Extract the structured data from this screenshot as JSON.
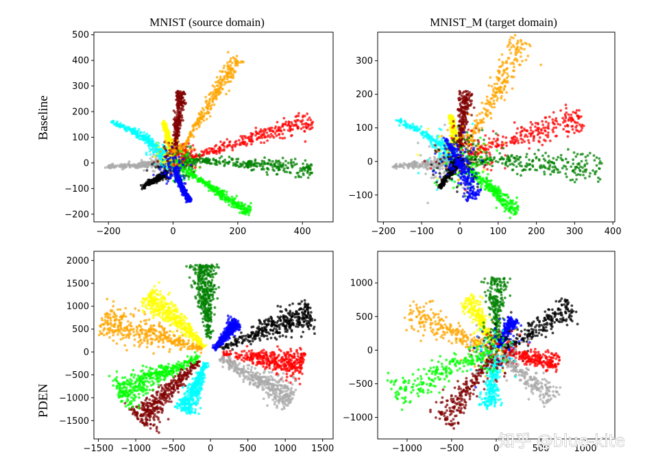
{
  "figure": {
    "column_titles": [
      "MNIST (source domain)",
      "MNIST_M (target domain)"
    ],
    "row_labels": [
      "Baseline",
      "PDEN"
    ],
    "watermark": "知乎 @blue-kite"
  },
  "chart_data": [
    {
      "type": "scatter",
      "title": "MNIST (source domain)",
      "row": "Baseline",
      "xlim": [
        -245,
        495
      ],
      "ylim": [
        -230,
        510
      ],
      "xticks": [
        -200,
        0,
        200,
        400
      ],
      "yticks": [
        -200,
        -100,
        0,
        100,
        200,
        300,
        400,
        500
      ],
      "spread": 0.12,
      "core": 0.06,
      "count": 260,
      "series": [
        {
          "color": "#a9a9a9",
          "center": [
            -80,
            -5
          ],
          "tip": [
            -205,
            -15
          ],
          "x": [
            -205,
            -120,
            -60,
            -20
          ],
          "y": [
            -15,
            -10,
            -5,
            0
          ]
        },
        {
          "color": "#000000",
          "center": [
            -55,
            -60
          ],
          "tip": [
            -95,
            -95
          ],
          "x": [
            -95,
            -70,
            -45,
            -20
          ],
          "y": [
            -95,
            -75,
            -60,
            -40
          ]
        },
        {
          "color": "#00ffff",
          "center": [
            -80,
            90
          ],
          "tip": [
            -195,
            165
          ],
          "x": [
            -195,
            -130,
            -80,
            -20
          ],
          "y": [
            165,
            125,
            90,
            30
          ]
        },
        {
          "color": "#ffff00",
          "center": [
            -18,
            110
          ],
          "tip": [
            -30,
            160
          ],
          "x": [
            -30,
            -22,
            -12,
            -5
          ],
          "y": [
            160,
            130,
            90,
            50
          ]
        },
        {
          "color": "#800000",
          "center": [
            15,
            150
          ],
          "tip": [
            25,
            280
          ],
          "x": [
            5,
            10,
            18,
            25
          ],
          "y": [
            30,
            100,
            190,
            280
          ]
        },
        {
          "color": "#ffa500",
          "center": [
            100,
            200
          ],
          "tip": [
            200,
            410
          ],
          "x": [
            20,
            80,
            140,
            200
          ],
          "y": [
            40,
            160,
            290,
            410
          ]
        },
        {
          "color": "#ff0000",
          "center": [
            200,
            90
          ],
          "tip": [
            430,
            170
          ],
          "x": [
            30,
            150,
            280,
            430
          ],
          "y": [
            10,
            60,
            110,
            170
          ]
        },
        {
          "color": "#008000",
          "center": [
            180,
            5
          ],
          "tip": [
            430,
            -25
          ],
          "x": [
            30,
            150,
            300,
            430
          ],
          "y": [
            10,
            5,
            -10,
            -25
          ]
        },
        {
          "color": "#00ff00",
          "center": [
            120,
            -90
          ],
          "tip": [
            235,
            -190
          ],
          "x": [
            40,
            100,
            170,
            235
          ],
          "y": [
            -30,
            -80,
            -140,
            -190
          ]
        },
        {
          "color": "#0000ff",
          "center": [
            30,
            -80
          ],
          "tip": [
            50,
            -150
          ],
          "x": [
            5,
            15,
            30,
            50
          ],
          "y": [
            -20,
            -60,
            -100,
            -150
          ]
        }
      ]
    },
    {
      "type": "scatter",
      "title": "MNIST_M (target domain)",
      "row": "Baseline",
      "xlim": [
        -215,
        405
      ],
      "ylim": [
        -180,
        385
      ],
      "xticks": [
        -200,
        -100,
        0,
        100,
        200,
        300,
        400
      ],
      "yticks": [
        -100,
        0,
        100,
        200,
        300
      ],
      "spread": 0.22,
      "core": 0.12,
      "count": 220,
      "series": [
        {
          "color": "#a9a9a9",
          "center": [
            -60,
            -5
          ],
          "tip": [
            -180,
            -15
          ],
          "x": [
            -180,
            -110,
            -50,
            -10
          ],
          "y": [
            -15,
            -10,
            -5,
            0
          ]
        },
        {
          "color": "#00ffff",
          "center": [
            -45,
            45
          ],
          "tip": [
            -165,
            125
          ],
          "x": [
            -165,
            -90,
            -40,
            -5
          ],
          "y": [
            125,
            80,
            40,
            5
          ]
        },
        {
          "color": "#ffff00",
          "center": [
            -20,
            90
          ],
          "tip": [
            -25,
            140
          ],
          "x": [
            -25,
            -20,
            -15,
            -10
          ],
          "y": [
            140,
            110,
            80,
            50
          ]
        },
        {
          "color": "#800000",
          "center": [
            5,
            90
          ],
          "tip": [
            15,
            210
          ],
          "x": [
            0,
            5,
            10,
            15
          ],
          "y": [
            30,
            90,
            150,
            210
          ]
        },
        {
          "color": "#ffa500",
          "center": [
            70,
            150
          ],
          "tip": [
            165,
            360
          ],
          "x": [
            20,
            70,
            120,
            165
          ],
          "y": [
            50,
            150,
            260,
            360
          ]
        },
        {
          "color": "#ff0000",
          "center": [
            130,
            60
          ],
          "tip": [
            320,
            125
          ],
          "x": [
            20,
            120,
            220,
            320
          ],
          "y": [
            20,
            60,
            95,
            125
          ]
        },
        {
          "color": "#008000",
          "center": [
            150,
            0
          ],
          "tip": [
            370,
            -20
          ],
          "x": [
            20,
            130,
            250,
            370
          ],
          "y": [
            5,
            0,
            -10,
            -20
          ]
        },
        {
          "color": "#00ff00",
          "center": [
            80,
            -55
          ],
          "tip": [
            150,
            -150
          ],
          "x": [
            20,
            60,
            100,
            150
          ],
          "y": [
            -20,
            -60,
            -100,
            -150
          ]
        },
        {
          "color": "#000000",
          "center": [
            -25,
            -20
          ],
          "tip": [
            -55,
            -80
          ],
          "x": [
            -55,
            -35,
            -15,
            5
          ],
          "y": [
            -80,
            -50,
            -20,
            10
          ]
        },
        {
          "color": "#0000ff",
          "center": [
            0,
            10
          ],
          "tip": [
            40,
            -110
          ],
          "x": [
            -40,
            -10,
            15,
            40
          ],
          "y": [
            70,
            20,
            -40,
            -110
          ]
        }
      ]
    },
    {
      "type": "scatter",
      "title": "",
      "row": "PDEN",
      "xlim": [
        -1560,
        1640
      ],
      "ylim": [
        -1900,
        2200
      ],
      "xticks": [
        -1500,
        -1000,
        -500,
        0,
        500,
        1000,
        1500
      ],
      "yticks": [
        -1500,
        -1000,
        -500,
        0,
        500,
        1000,
        1500,
        2000
      ],
      "spread": 0.32,
      "core": 0,
      "count": 380,
      "series": [
        {
          "color": "#ffa500",
          "center": [
            -700,
            300
          ],
          "tip": [
            -1450,
            700
          ],
          "x": [
            -100,
            -500,
            -950,
            -1450
          ],
          "y": [
            50,
            250,
            450,
            700
          ]
        },
        {
          "color": "#ffff00",
          "center": [
            -500,
            650
          ],
          "tip": [
            -850,
            1250
          ],
          "x": [
            -80,
            -350,
            -600,
            -850
          ],
          "y": [
            100,
            550,
            900,
            1250
          ]
        },
        {
          "color": "#008000",
          "center": [
            -10,
            1100
          ],
          "tip": [
            -100,
            1900
          ],
          "x": [
            -20,
            -50,
            -80,
            -100
          ],
          "y": [
            300,
            900,
            1400,
            1900
          ]
        },
        {
          "color": "#0000ff",
          "center": [
            200,
            350
          ],
          "tip": [
            350,
            650
          ],
          "x": [
            50,
            150,
            250,
            350
          ],
          "y": [
            50,
            250,
            450,
            650
          ]
        },
        {
          "color": "#000000",
          "center": [
            800,
            550
          ],
          "tip": [
            1350,
            850
          ],
          "x": [
            150,
            600,
            1000,
            1350
          ],
          "y": [
            80,
            400,
            650,
            850
          ]
        },
        {
          "color": "#ff0000",
          "center": [
            700,
            -150
          ],
          "tip": [
            1250,
            -300
          ],
          "x": [
            150,
            600,
            950,
            1250
          ],
          "y": [
            -30,
            -120,
            -220,
            -300
          ]
        },
        {
          "color": "#a9a9a9",
          "center": [
            500,
            -550
          ],
          "tip": [
            1100,
            -1000
          ],
          "x": [
            100,
            450,
            800,
            1100
          ],
          "y": [
            -100,
            -450,
            -750,
            -1000
          ]
        },
        {
          "color": "#00ffff",
          "center": [
            -200,
            -700
          ],
          "tip": [
            -350,
            -1300
          ],
          "x": [
            -50,
            -150,
            -250,
            -350
          ],
          "y": [
            -200,
            -600,
            -950,
            -1300
          ]
        },
        {
          "color": "#800000",
          "center": [
            -550,
            -800
          ],
          "tip": [
            -950,
            -1500
          ],
          "x": [
            -150,
            -450,
            -700,
            -950
          ],
          "y": [
            -200,
            -650,
            -1100,
            -1500
          ]
        },
        {
          "color": "#00ff00",
          "center": [
            -700,
            -450
          ],
          "tip": [
            -1250,
            -900
          ],
          "x": [
            -150,
            -550,
            -900,
            -1250
          ],
          "y": [
            -100,
            -400,
            -650,
            -900
          ]
        }
      ]
    },
    {
      "type": "scatter",
      "title": "",
      "row": "PDEN",
      "xlim": [
        -1330,
        1330
      ],
      "ylim": [
        -1320,
        1470
      ],
      "xticks": [
        -1000,
        -500,
        0,
        500,
        1000
      ],
      "yticks": [
        -1000,
        -500,
        0,
        500,
        1000
      ],
      "spread": 0.34,
      "core": 0.1,
      "count": 200,
      "series": [
        {
          "color": "#ffa500",
          "center": [
            -300,
            150
          ],
          "tip": [
            -1000,
            580
          ],
          "x": [
            -60,
            -350,
            -650,
            -1000
          ],
          "y": [
            20,
            170,
            350,
            580
          ]
        },
        {
          "color": "#ffff00",
          "center": [
            -200,
            350
          ],
          "tip": [
            -330,
            780
          ],
          "x": [
            -30,
            -130,
            -230,
            -330
          ],
          "y": [
            80,
            350,
            570,
            780
          ]
        },
        {
          "color": "#008000",
          "center": [
            10,
            500
          ],
          "tip": [
            -10,
            1100
          ],
          "x": [
            0,
            5,
            0,
            -10
          ],
          "y": [
            150,
            500,
            800,
            1100
          ]
        },
        {
          "color": "#0000ff",
          "center": [
            100,
            200
          ],
          "tip": [
            200,
            450
          ],
          "x": [
            20,
            80,
            140,
            200
          ],
          "y": [
            30,
            180,
            320,
            450
          ]
        },
        {
          "color": "#000000",
          "center": [
            400,
            250
          ],
          "tip": [
            850,
            650
          ],
          "x": [
            100,
            350,
            600,
            850
          ],
          "y": [
            30,
            220,
            440,
            650
          ]
        },
        {
          "color": "#ff0000",
          "center": [
            300,
            -80
          ],
          "tip": [
            700,
            -200
          ],
          "x": [
            80,
            300,
            500,
            700
          ],
          "y": [
            -20,
            -80,
            -140,
            -200
          ]
        },
        {
          "color": "#a9a9a9",
          "center": [
            250,
            -350
          ],
          "tip": [
            650,
            -700
          ],
          "x": [
            50,
            250,
            450,
            650
          ],
          "y": [
            -80,
            -320,
            -520,
            -700
          ]
        },
        {
          "color": "#00ffff",
          "center": [
            -50,
            -400
          ],
          "tip": [
            -80,
            -850
          ],
          "x": [
            -10,
            -30,
            -55,
            -80
          ],
          "y": [
            -100,
            -350,
            -600,
            -850
          ]
        },
        {
          "color": "#800000",
          "center": [
            -250,
            -450
          ],
          "tip": [
            -600,
            -1050
          ],
          "x": [
            -50,
            -250,
            -420,
            -600
          ],
          "y": [
            -80,
            -450,
            -750,
            -1050
          ]
        },
        {
          "color": "#00ff00",
          "center": [
            -350,
            -200
          ],
          "tip": [
            -1150,
            -650
          ],
          "x": [
            -80,
            -450,
            -800,
            -1150
          ],
          "y": [
            -30,
            -220,
            -440,
            -650
          ]
        }
      ]
    }
  ]
}
